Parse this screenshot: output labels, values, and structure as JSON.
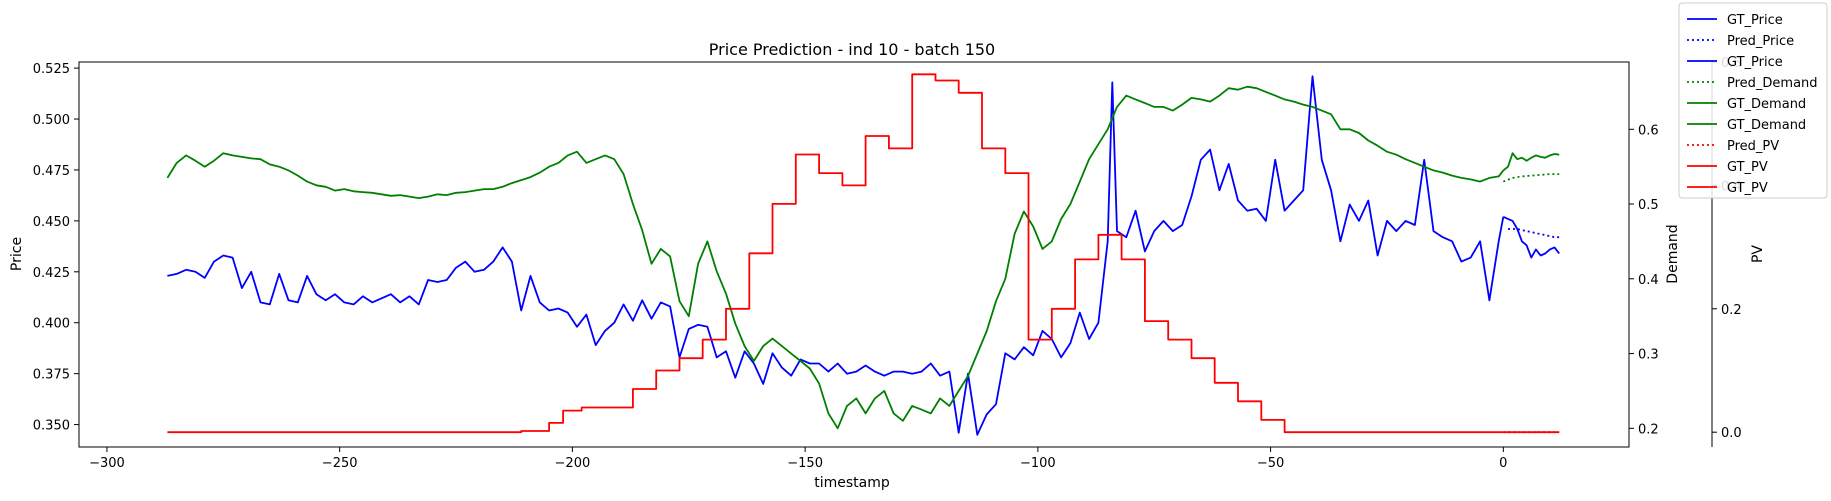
{
  "chart_data": {
    "type": "line",
    "title": "Price Prediction - ind 10 - batch 150",
    "xlabel": "timestamp",
    "xlim": [
      -306,
      27
    ],
    "xticks": [
      -300,
      -250,
      -200,
      -150,
      -100,
      -50,
      0
    ],
    "grid": false,
    "legend_placement": "top-right (outside plot)",
    "axes": [
      {
        "label": "Price",
        "color": "#0000ff",
        "side": "left",
        "ylim": [
          0.339,
          0.528
        ],
        "ticks": [
          0.35,
          0.375,
          0.4,
          0.425,
          0.45,
          0.475,
          0.5,
          0.525
        ]
      },
      {
        "label": "Demand",
        "color": "#008000",
        "side": "right",
        "ylim": [
          0.175,
          0.69
        ],
        "ticks": [
          0.2,
          0.3,
          0.4,
          0.5,
          0.6
        ]
      },
      {
        "label": "PV",
        "color": "#ff0000",
        "side": "right-outer",
        "ylim": [
          -0.024,
          0.6
        ],
        "ticks": [
          0.0,
          0.2,
          0.4,
          0.6
        ]
      }
    ],
    "legend": [
      {
        "label": "GT_Price",
        "color": "#0000ff",
        "style": "solid"
      },
      {
        "label": "Pred_Price",
        "color": "#0000ff",
        "style": "dotted"
      },
      {
        "label": "GT_Price",
        "color": "#0000ff",
        "style": "solid"
      },
      {
        "label": "Pred_Demand",
        "color": "#008000",
        "style": "dotted"
      },
      {
        "label": "GT_Demand",
        "color": "#008000",
        "style": "solid"
      },
      {
        "label": "GT_Demand",
        "color": "#008000",
        "style": "solid"
      },
      {
        "label": "Pred_PV",
        "color": "#ff0000",
        "style": "dotted"
      },
      {
        "label": "GT_PV",
        "color": "#ff0000",
        "style": "solid"
      },
      {
        "label": "GT_PV",
        "color": "#ff0000",
        "style": "solid"
      }
    ],
    "series": [
      {
        "name": "GT_Price",
        "axis": 0,
        "color": "#0000ff",
        "style": "solid",
        "x": [
          -287,
          -285,
          -283,
          -281,
          -279,
          -277,
          -275,
          -273,
          -271,
          -269,
          -267,
          -265,
          -263,
          -261,
          -259,
          -257,
          -255,
          -253,
          -251,
          -249,
          -247,
          -245,
          -243,
          -241,
          -239,
          -237,
          -235,
          -233,
          -231,
          -229,
          -227,
          -225,
          -223,
          -221,
          -219,
          -217,
          -215,
          -213,
          -211,
          -209,
          -207,
          -205,
          -203,
          -201,
          -199,
          -197,
          -195,
          -193,
          -191,
          -189,
          -187,
          -185,
          -183,
          -181,
          -179,
          -177,
          -175,
          -173,
          -171,
          -169,
          -167,
          -165,
          -163,
          -161,
          -159,
          -157,
          -155,
          -153,
          -151,
          -149,
          -147,
          -145,
          -143,
          -141,
          -139,
          -137,
          -135,
          -133,
          -131,
          -129,
          -127,
          -125,
          -123,
          -121,
          -119,
          -117,
          -115,
          -113,
          -111,
          -109,
          -107,
          -105,
          -103,
          -101,
          -99,
          -97,
          -95,
          -93,
          -91,
          -89,
          -87,
          -85,
          -84,
          -83,
          -81,
          -79,
          -77,
          -75,
          -73,
          -71,
          -69,
          -67,
          -65,
          -63,
          -61,
          -59,
          -57,
          -55,
          -53,
          -51,
          -49,
          -47,
          -45,
          -43,
          -41,
          -39,
          -37,
          -35,
          -33,
          -31,
          -29,
          -27,
          -25,
          -23,
          -21,
          -19,
          -17,
          -15,
          -13,
          -11,
          -9,
          -7,
          -5,
          -3,
          -1,
          0
        ],
        "values": [
          0.423,
          0.424,
          0.426,
          0.425,
          0.422,
          0.43,
          0.433,
          0.432,
          0.417,
          0.425,
          0.41,
          0.409,
          0.424,
          0.411,
          0.41,
          0.423,
          0.414,
          0.411,
          0.414,
          0.41,
          0.409,
          0.413,
          0.41,
          0.412,
          0.414,
          0.41,
          0.413,
          0.409,
          0.421,
          0.42,
          0.421,
          0.427,
          0.43,
          0.425,
          0.426,
          0.43,
          0.437,
          0.43,
          0.406,
          0.423,
          0.41,
          0.406,
          0.407,
          0.405,
          0.398,
          0.404,
          0.389,
          0.396,
          0.4,
          0.409,
          0.401,
          0.411,
          0.402,
          0.41,
          0.408,
          0.383,
          0.397,
          0.399,
          0.398,
          0.383,
          0.386,
          0.373,
          0.386,
          0.38,
          0.37,
          0.385,
          0.378,
          0.374,
          0.382,
          0.38,
          0.38,
          0.376,
          0.38,
          0.375,
          0.376,
          0.379,
          0.376,
          0.374,
          0.376,
          0.376,
          0.375,
          0.376,
          0.38,
          0.374,
          0.376,
          0.346,
          0.375,
          0.345,
          0.355,
          0.36,
          0.385,
          0.382,
          0.388,
          0.384,
          0.396,
          0.392,
          0.383,
          0.39,
          0.405,
          0.392,
          0.4,
          0.44,
          0.518,
          0.445,
          0.442,
          0.455,
          0.435,
          0.445,
          0.45,
          0.445,
          0.448,
          0.462,
          0.48,
          0.485,
          0.465,
          0.478,
          0.46,
          0.455,
          0.456,
          0.45,
          0.48,
          0.455,
          0.46,
          0.465,
          0.521,
          0.48,
          0.465,
          0.44,
          0.458,
          0.45,
          0.46,
          0.433,
          0.45,
          0.445,
          0.45,
          0.448,
          0.48,
          0.445,
          0.442,
          0.44,
          0.43,
          0.432,
          0.44,
          0.411,
          0.44,
          0.452
        ]
      },
      {
        "name": "Pred_Price",
        "axis": 0,
        "color": "#0000ff",
        "style": "dotted",
        "x": [
          1,
          3,
          5,
          7,
          9,
          11,
          12
        ],
        "values": [
          0.446,
          0.446,
          0.445,
          0.444,
          0.443,
          0.442,
          0.442
        ]
      },
      {
        "name": "GT_Price",
        "axis": 0,
        "color": "#0000ff",
        "style": "solid",
        "x": [
          0,
          1,
          2,
          3,
          4,
          5,
          6,
          7,
          8,
          9,
          10,
          11,
          12
        ],
        "values": [
          0.452,
          0.451,
          0.45,
          0.446,
          0.44,
          0.438,
          0.432,
          0.436,
          0.433,
          0.434,
          0.436,
          0.437,
          0.434
        ]
      },
      {
        "name": "Pred_Demand",
        "axis": 1,
        "color": "#008000",
        "style": "dotted",
        "x": [
          0,
          2,
          4,
          6,
          8,
          10,
          12
        ],
        "values": [
          0.53,
          0.535,
          0.537,
          0.538,
          0.539,
          0.54,
          0.54
        ]
      },
      {
        "name": "GT_Demand",
        "axis": 1,
        "color": "#008000",
        "style": "solid",
        "x": [
          -287,
          -285,
          -283,
          -281,
          -279,
          -277,
          -275,
          -273,
          -271,
          -269,
          -267,
          -265,
          -263,
          -261,
          -259,
          -257,
          -255,
          -253,
          -251,
          -249,
          -247,
          -245,
          -243,
          -241,
          -239,
          -237,
          -235,
          -233,
          -231,
          -229,
          -227,
          -225,
          -223,
          -221,
          -219,
          -217,
          -215,
          -213,
          -211,
          -209,
          -207,
          -205,
          -203,
          -201,
          -199,
          -197,
          -195,
          -193,
          -191,
          -189,
          -187,
          -185,
          -183,
          -181,
          -179,
          -177,
          -175,
          -173,
          -171,
          -169,
          -167,
          -165,
          -163,
          -161,
          -159,
          -157,
          -155,
          -153,
          -151,
          -149,
          -147,
          -145,
          -143,
          -141,
          -139,
          -137,
          -135,
          -133,
          -131,
          -129,
          -127,
          -125,
          -123,
          -121,
          -119,
          -117,
          -115,
          -113,
          -111,
          -109,
          -107,
          -105,
          -103,
          -101,
          -99,
          -97,
          -95,
          -93,
          -91,
          -89,
          -87,
          -85,
          -83,
          -81,
          -79,
          -77,
          -75,
          -73,
          -71,
          -69,
          -67,
          -65,
          -63,
          -61,
          -59,
          -57,
          -55,
          -53,
          -51,
          -49,
          -47,
          -45,
          -43,
          -41,
          -39,
          -37,
          -35,
          -33,
          -31,
          -29,
          -27,
          -25,
          -23,
          -21,
          -19,
          -17,
          -15,
          -13,
          -11,
          -9,
          -7,
          -5,
          -3,
          -1,
          0
        ],
        "values": [
          0.535,
          0.555,
          0.565,
          0.558,
          0.55,
          0.558,
          0.568,
          0.565,
          0.563,
          0.561,
          0.56,
          0.553,
          0.55,
          0.545,
          0.538,
          0.53,
          0.525,
          0.523,
          0.518,
          0.52,
          0.517,
          0.516,
          0.515,
          0.513,
          0.511,
          0.512,
          0.51,
          0.508,
          0.51,
          0.513,
          0.512,
          0.515,
          0.516,
          0.518,
          0.52,
          0.52,
          0.523,
          0.528,
          0.532,
          0.536,
          0.542,
          0.55,
          0.555,
          0.565,
          0.57,
          0.555,
          0.56,
          0.565,
          0.56,
          0.54,
          0.5,
          0.465,
          0.42,
          0.44,
          0.43,
          0.37,
          0.35,
          0.42,
          0.45,
          0.41,
          0.38,
          0.34,
          0.31,
          0.29,
          0.31,
          0.32,
          0.31,
          0.3,
          0.29,
          0.28,
          0.26,
          0.22,
          0.2,
          0.23,
          0.24,
          0.22,
          0.24,
          0.25,
          0.22,
          0.21,
          0.23,
          0.225,
          0.22,
          0.24,
          0.23,
          0.25,
          0.27,
          0.3,
          0.33,
          0.37,
          0.4,
          0.46,
          0.49,
          0.47,
          0.44,
          0.45,
          0.48,
          0.5,
          0.53,
          0.56,
          0.58,
          0.6,
          0.63,
          0.645,
          0.64,
          0.635,
          0.63,
          0.63,
          0.625,
          0.633,
          0.642,
          0.64,
          0.637,
          0.645,
          0.655,
          0.653,
          0.657,
          0.655,
          0.65,
          0.645,
          0.64,
          0.637,
          0.633,
          0.63,
          0.625,
          0.62,
          0.6,
          0.6,
          0.595,
          0.585,
          0.578,
          0.57,
          0.566,
          0.56,
          0.555,
          0.55,
          0.545,
          0.542,
          0.538,
          0.535,
          0.533,
          0.53,
          0.535,
          0.537,
          0.545
        ]
      },
      {
        "name": "GT_Demand",
        "axis": 1,
        "color": "#008000",
        "style": "solid",
        "x": [
          0,
          1,
          2,
          3,
          4,
          5,
          6,
          7,
          8,
          9,
          10,
          11,
          12
        ],
        "values": [
          0.545,
          0.55,
          0.568,
          0.56,
          0.562,
          0.558,
          0.562,
          0.565,
          0.563,
          0.562,
          0.565,
          0.567,
          0.566
        ]
      },
      {
        "name": "Pred_PV",
        "axis": 2,
        "color": "#ff0000",
        "style": "dotted",
        "x": [
          0,
          12
        ],
        "values": [
          0.0,
          0.0
        ]
      },
      {
        "name": "GT_PV",
        "axis": 2,
        "color": "#ff0000",
        "style": "solid",
        "step": true,
        "x": [
          -287,
          -211,
          -205,
          -202,
          -198,
          -192,
          -187,
          -182,
          -177,
          -172,
          -167,
          -162,
          -157,
          -152,
          -147,
          -142,
          -137,
          -132,
          -127,
          -122,
          -117,
          -112,
          -107,
          -102,
          -97,
          -92,
          -87,
          -82,
          -77,
          -72,
          -67,
          -62,
          -57,
          -52,
          -47,
          -42,
          0
        ],
        "values": [
          0.0,
          0.002,
          0.015,
          0.035,
          0.04,
          0.04,
          0.07,
          0.1,
          0.12,
          0.15,
          0.2,
          0.29,
          0.37,
          0.45,
          0.42,
          0.4,
          0.48,
          0.46,
          0.58,
          0.57,
          0.55,
          0.46,
          0.42,
          0.15,
          0.2,
          0.28,
          0.32,
          0.28,
          0.18,
          0.15,
          0.12,
          0.08,
          0.05,
          0.02,
          0.0,
          0.0,
          0.0
        ]
      },
      {
        "name": "GT_PV",
        "axis": 2,
        "color": "#ff0000",
        "style": "solid",
        "step": true,
        "x": [
          0,
          12
        ],
        "values": [
          0.0,
          0.0
        ]
      }
    ]
  }
}
